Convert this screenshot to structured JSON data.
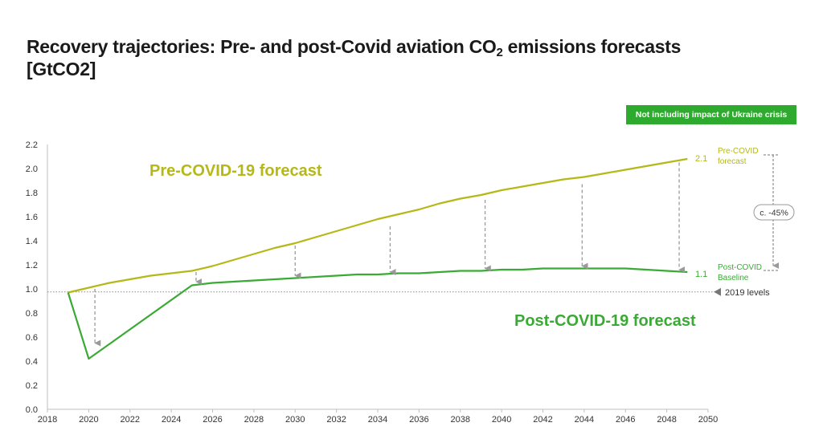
{
  "title": {
    "line1_pre": "Recovery trajectories: Pre- and post-Covid aviation CO",
    "sub": "2",
    "line1_post": " emissions forecasts",
    "line2": "[GtCO2]"
  },
  "note": "Not including  impact of Ukraine crisis",
  "colors": {
    "pre": "#b5b817",
    "post": "#3aaa35",
    "note_bg": "#2eab2e",
    "arrow": "#9a9a9a"
  },
  "chart_data": {
    "type": "line",
    "title": "Recovery trajectories: Pre- and post-Covid aviation CO2 emissions forecasts [GtCO2]",
    "xlim": [
      2018,
      2050
    ],
    "ylim": [
      0,
      2.2
    ],
    "x_ticks": [
      2018,
      2020,
      2022,
      2024,
      2026,
      2028,
      2030,
      2032,
      2034,
      2036,
      2038,
      2040,
      2042,
      2044,
      2046,
      2048,
      2050
    ],
    "y_ticks": [
      0.0,
      0.2,
      0.4,
      0.6,
      0.8,
      1.0,
      1.2,
      1.4,
      1.6,
      1.8,
      2.0,
      2.2
    ],
    "grid": false,
    "series": [
      {
        "name": "Pre-COVID-19 forecast",
        "x": [
          2019,
          2020,
          2021,
          2022,
          2023,
          2024,
          2025,
          2026,
          2027,
          2028,
          2029,
          2030,
          2031,
          2032,
          2033,
          2034,
          2035,
          2036,
          2037,
          2038,
          2039,
          2040,
          2041,
          2042,
          2043,
          2044,
          2045,
          2046,
          2047,
          2048,
          2049
        ],
        "y": [
          0.97,
          1.01,
          1.05,
          1.08,
          1.11,
          1.13,
          1.15,
          1.19,
          1.24,
          1.29,
          1.34,
          1.38,
          1.43,
          1.48,
          1.53,
          1.58,
          1.62,
          1.66,
          1.71,
          1.75,
          1.78,
          1.82,
          1.85,
          1.88,
          1.91,
          1.93,
          1.96,
          1.99,
          2.02,
          2.05,
          2.08
        ]
      },
      {
        "name": "Post-COVID-19 forecast",
        "x": [
          2019,
          2020,
          2025,
          2026,
          2027,
          2028,
          2029,
          2030,
          2031,
          2032,
          2033,
          2034,
          2035,
          2036,
          2037,
          2038,
          2039,
          2040,
          2041,
          2042,
          2043,
          2044,
          2045,
          2046,
          2047,
          2048,
          2049
        ],
        "y": [
          0.97,
          0.42,
          1.03,
          1.05,
          1.06,
          1.07,
          1.08,
          1.09,
          1.1,
          1.11,
          1.12,
          1.12,
          1.13,
          1.13,
          1.14,
          1.15,
          1.15,
          1.16,
          1.16,
          1.17,
          1.17,
          1.17,
          1.17,
          1.17,
          1.16,
          1.15,
          1.14
        ]
      }
    ],
    "baseline": {
      "y": 0.975,
      "label": "2019 levels"
    },
    "gap_arrows": [
      {
        "x": 2020.3,
        "from": 1.0,
        "to": 0.55
      },
      {
        "x": 2025.2,
        "from": 1.14,
        "to": 1.06
      },
      {
        "x": 2030.0,
        "from": 1.36,
        "to": 1.11
      },
      {
        "x": 2034.6,
        "from": 1.52,
        "to": 1.14
      },
      {
        "x": 2039.2,
        "from": 1.74,
        "to": 1.17
      },
      {
        "x": 2043.9,
        "from": 1.87,
        "to": 1.19
      },
      {
        "x": 2048.6,
        "from": 2.05,
        "to": 1.16
      }
    ],
    "series_labels": {
      "pre": "Pre-COVID-19 forecast",
      "post": "Post-COVID-19 forecast"
    },
    "end_labels": {
      "pre_value": "2.1",
      "pre_line1": "Pre-COVID",
      "pre_line2": "forecast",
      "post_value": "1.1",
      "post_line1": "Post-COVID",
      "post_line2": "Baseline"
    },
    "reduction_label": "c. -45%",
    "reduction_from": 2.1,
    "reduction_to": 1.16
  }
}
